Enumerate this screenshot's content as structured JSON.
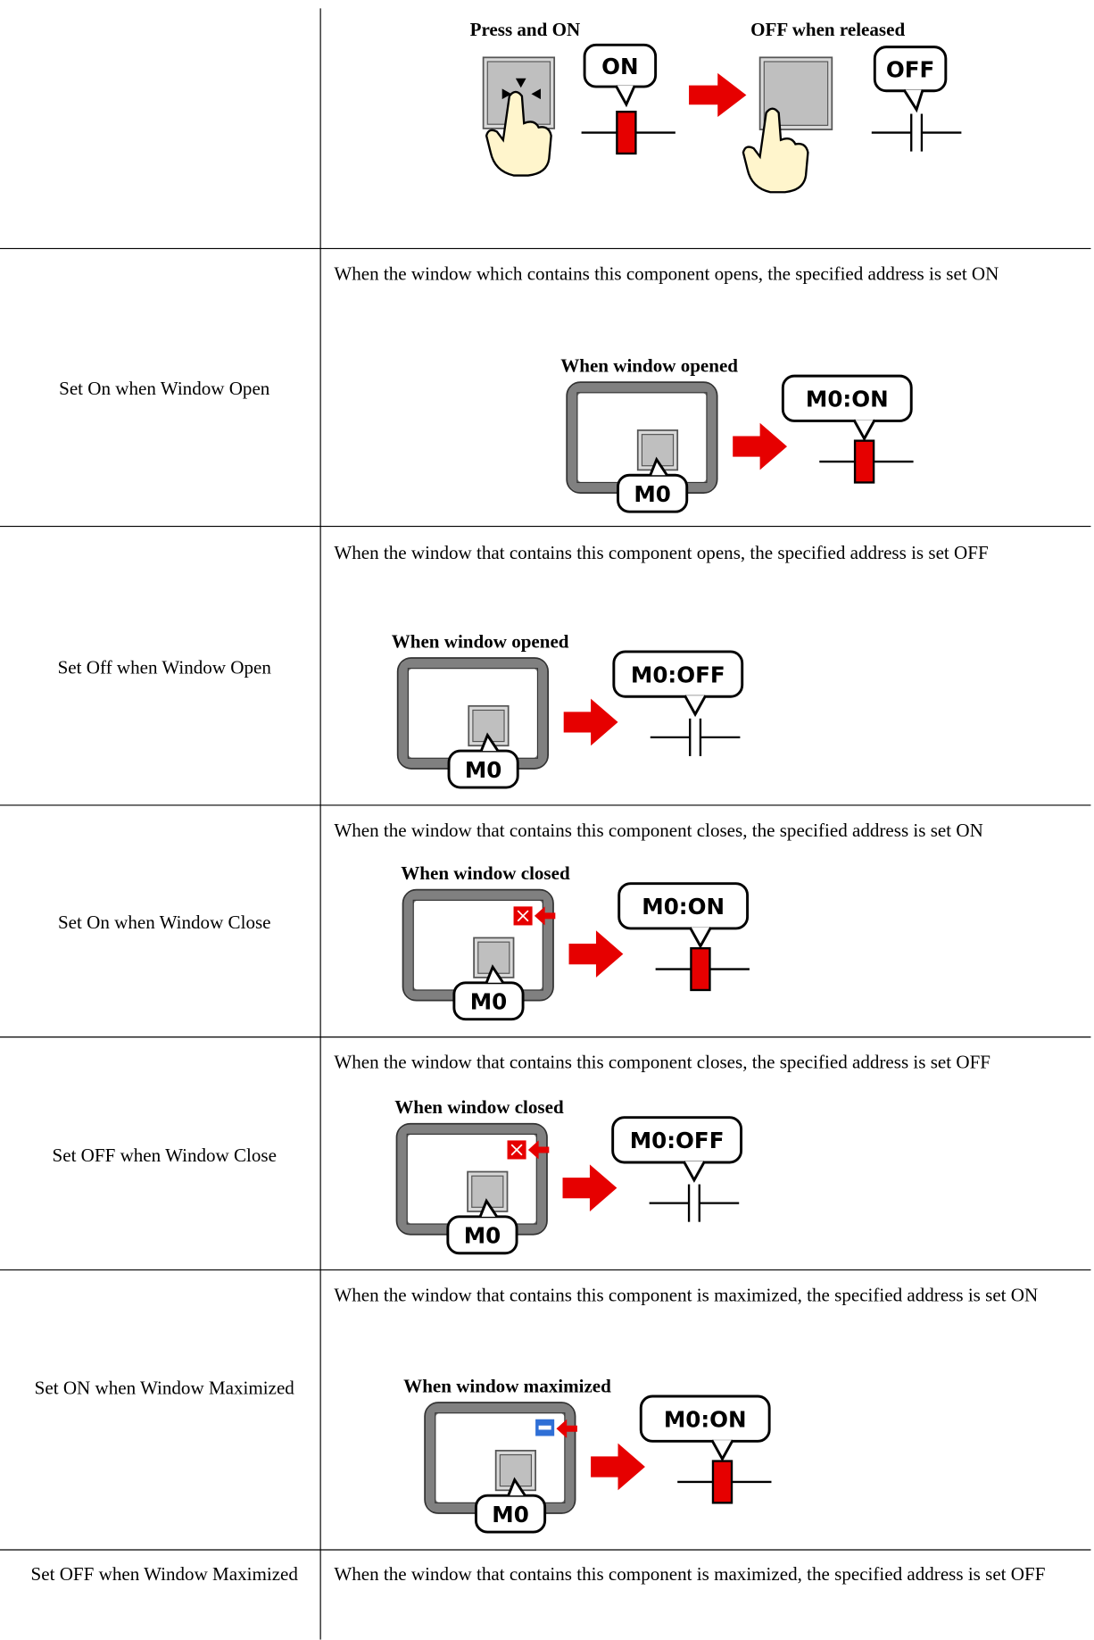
{
  "table": {
    "rows": [
      {
        "diagram": {
          "press_caption": "Press and ON",
          "press_bubble": "ON",
          "release_caption": "OFF when released",
          "release_bubble": "OFF"
        }
      },
      {
        "label": "Set On when Window Open",
        "description": "When the window which contains this component opens, the specified address is set ON",
        "diagram": {
          "caption": "When window opened",
          "tag": "M0",
          "bubble": "M0:ON"
        }
      },
      {
        "label": "Set Off when Window Open",
        "description": "When the window that contains this component opens, the specified address is set OFF",
        "diagram": {
          "caption": "When window opened",
          "tag": "M0",
          "bubble": "M0:OFF"
        }
      },
      {
        "label": "Set On when Window Close",
        "description": "When the window that contains this component closes, the specified address is set ON",
        "diagram": {
          "caption": "When window closed",
          "tag": "M0",
          "bubble": "M0:ON"
        }
      },
      {
        "label": "Set OFF when Window Close",
        "description": "When the window that contains this component closes, the specified address is set OFF",
        "diagram": {
          "caption": "When window closed",
          "tag": "M0",
          "bubble": "M0:OFF"
        }
      },
      {
        "label": "Set ON when Window Maximized",
        "description": "When the window that contains this component is maximized, the specified address is set ON",
        "diagram": {
          "caption": "When window maximized",
          "tag": "M0",
          "bubble": "M0:ON"
        }
      },
      {
        "label": "Set OFF when Window Maximized",
        "description": "When the window that contains this component is maximized, the specified address is set OFF"
      }
    ]
  }
}
